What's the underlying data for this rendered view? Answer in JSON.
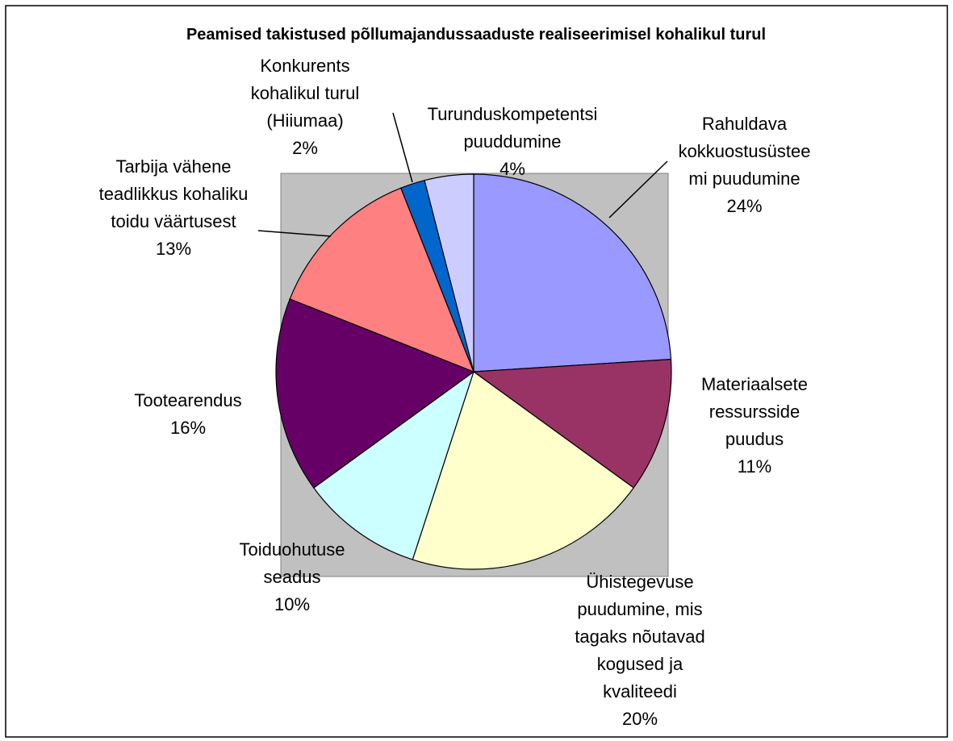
{
  "chart_data": {
    "type": "pie",
    "title": "Peamised takistused põllumajandussaaduste realiseerimisel kohalikul turul",
    "categories": [
      "Rahuldava kokkuostusüsteemi puudumine",
      "Materiaalsete ressursside puudus",
      "Ühistegevuse puudumine, mis tagaks nõutavad kogused ja kvaliteedi",
      "Toiduohutuse seadus",
      "Tootearendus",
      "Tarbija vähene teadlikkus kohaliku toidu väärtusest",
      "Konkurents kohalikul turul (Hiiumaa)",
      "Turunduskompetentsi puuddumine"
    ],
    "values": [
      24,
      11,
      20,
      10,
      16,
      13,
      2,
      4
    ],
    "value_labels": [
      "24%",
      "11%",
      "20%",
      "10%",
      "16%",
      "13%",
      "2%",
      "4%"
    ],
    "colors": [
      "#9999ff",
      "#993366",
      "#ffffcc",
      "#ccffff",
      "#660066",
      "#ff8080",
      "#0066cc",
      "#ccccff"
    ]
  }
}
